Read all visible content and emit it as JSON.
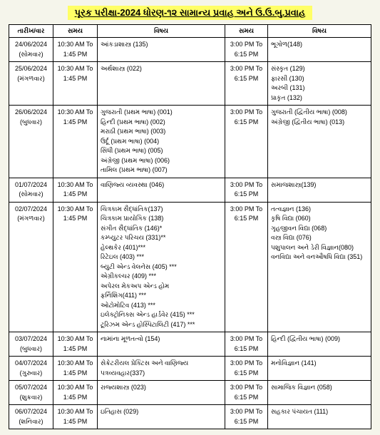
{
  "title": "પૂરક પરીક્ષા-2024 ધોરણ-૧૨ સામાન્ય પ્રવાહ અને ઉ.ઉ.બુ.પ્રવાહ",
  "headers": {
    "date": "તારીખ/વાર",
    "time1": "સમય",
    "subj1": "વિષય",
    "time2": "સમય",
    "subj2": "વિષય"
  },
  "rows": [
    {
      "date": [
        "24/06/2024",
        "(સોમવાર)"
      ],
      "time1": [
        "10:30 AM To",
        "1:45 PM"
      ],
      "subj1": [
        "આંકડાશાસ્ત્ર (135)"
      ],
      "time2": [
        "3:00 PM To",
        "6:15 PM"
      ],
      "subj2": [
        "ભૂગોળ(148)"
      ]
    },
    {
      "date": [
        "25/06/2024",
        "(મંગળવાર)"
      ],
      "time1": [
        "10:30 AM To",
        "1:45 PM"
      ],
      "subj1": [
        "અર્થશાસ્ત્ર (022)"
      ],
      "time2": [
        "3:00 PM To",
        "6:15 PM"
      ],
      "subj2": [
        "સંસ્કૃત (129)",
        "ફારસી (130)",
        "અરબી (131)",
        "પ્રાકૃત (132)"
      ]
    },
    {
      "date": [
        "26/06/2024",
        "(બુધવાર)"
      ],
      "time1": [
        "10:30 AM To",
        "1:45 PM"
      ],
      "subj1": [
        "ગુજરાતી (પ્રથમ ભાષા) (001)",
        "હિન્દી (પ્રથમ ભાષા) (002)",
        "મરાઠી (પ્રથમ ભાષા) (003)",
        "ઉર્દૂ (પ્રથમ ભાષા) (004)",
        "સિંધી (પ્રથમ ભાષા) (005)",
        "અંગ્રેજી (પ્રથમ ભાષા) (006)",
        "તામિલ (પ્રથમ ભાષા) (007)"
      ],
      "time2": [
        "3:00 PM To",
        "6:15 PM"
      ],
      "subj2": [
        "ગુજરાતી (દ્વિતીય ભાષા) (008)",
        "અંગ્રેજી (દ્વિતીય ભાષા) (013)"
      ]
    },
    {
      "date": [
        "01/07/2024",
        "(સોમવાર)"
      ],
      "time1": [
        "10:30 AM To",
        "1:45 PM"
      ],
      "subj1": [
        "વાણિજ્ય વ્યવસ્થા (046)"
      ],
      "time2": [
        "3:00 PM To",
        "6:15 PM"
      ],
      "subj2": [
        "સમાજશાસ્ત્ર(139)"
      ]
    },
    {
      "date": [
        "02/07/2024",
        "(મંગળવાર)"
      ],
      "time1": [
        "10:30 AM To",
        "1:45 PM"
      ],
      "subj1": [
        "ચિત્રકામ સૈદ્ધાંતિક(137)",
        "ચિત્રકામ પ્રાયોગિક (138)",
        "સંગીત સૈદ્ધાંતિક (146)*",
        "કમ્પ્યુટર પરિચય (331)**",
        "હેલ્થકેર (401)***",
        "રિટેઇલ (403) ***",
        "બ્યુટી એન્ડ વેલનેસ (405) ***",
        "એગ્રીકલ્ચર (409) ***",
        "અપેરલ મેકઅપ એન્ડ હોમ",
        "ફર્નિશિંગ(411) ***",
        "ઓટોમોટિવ (413) ***",
        "ઇલેક્ટ્રોનિક્સ એન્ડ હાર્ડવેર (415) ***",
        "ટૂરિઝમ એન્ડ હોસ્પિટાલિટી (417) ***"
      ],
      "time2": [
        "3:00 PM To",
        "6:15 PM"
      ],
      "subj2": [
        "તત્વજ્ઞાન (136)",
        "કૃષિ વિદ્યા (060)",
        "ગૃહજીવન વિદ્યા (068)",
        "વસ્ત્ર વિદ્યા (076)",
        "પશુપાલન અને ડેરી વિજ્ઞાન(080)",
        "વનવિદ્યા અને વનઔષધિ વિદ્યા (351)"
      ]
    },
    {
      "date": [
        "03/07/2024",
        "(બુધવાર)"
      ],
      "time1": [
        "10:30 AM To",
        "1:45 PM"
      ],
      "subj1": [
        "નામાંના મૂળતત્વો (154)"
      ],
      "time2": [
        "3:00 PM To",
        "6:15 PM"
      ],
      "subj2": [
        "હિન્દી (દ્વિતીય ભાષા) (009)"
      ]
    },
    {
      "date": [
        "04/07/2024",
        "(ગુરુવાર)"
      ],
      "time1": [
        "10:30 AM To",
        "1:45 PM"
      ],
      "subj1": [
        "સેક્રેટરીયલ પ્રેક્ટિસ અને વાણિજ્ય",
        "પત્રવ્યવહાર(337)"
      ],
      "time2": [
        "3:00 PM To",
        "6:15 PM"
      ],
      "subj2": [
        "મનોવિજ્ઞાન (141)"
      ]
    },
    {
      "date": [
        "05/07/2024",
        "(શુક્રવાર)"
      ],
      "time1": [
        "10:30 AM To",
        "1:45 PM"
      ],
      "subj1": [
        "રાજ્યશાસ્ત્ર (023)"
      ],
      "time2": [
        "3:00 PM To",
        "6:15 PM"
      ],
      "subj2": [
        "સામાજિક વિજ્ઞાન (058)"
      ]
    },
    {
      "date": [
        "06/07/2024",
        "(શનિવાર)"
      ],
      "time1": [
        "10:30 AM To",
        "1:45 PM"
      ],
      "subj1": [
        "ઇતિહાસ (029)"
      ],
      "time2": [
        "3:00 PM To",
        "6:15 PM"
      ],
      "subj2": [
        "સહકાર પંચાયત (111)"
      ]
    }
  ]
}
